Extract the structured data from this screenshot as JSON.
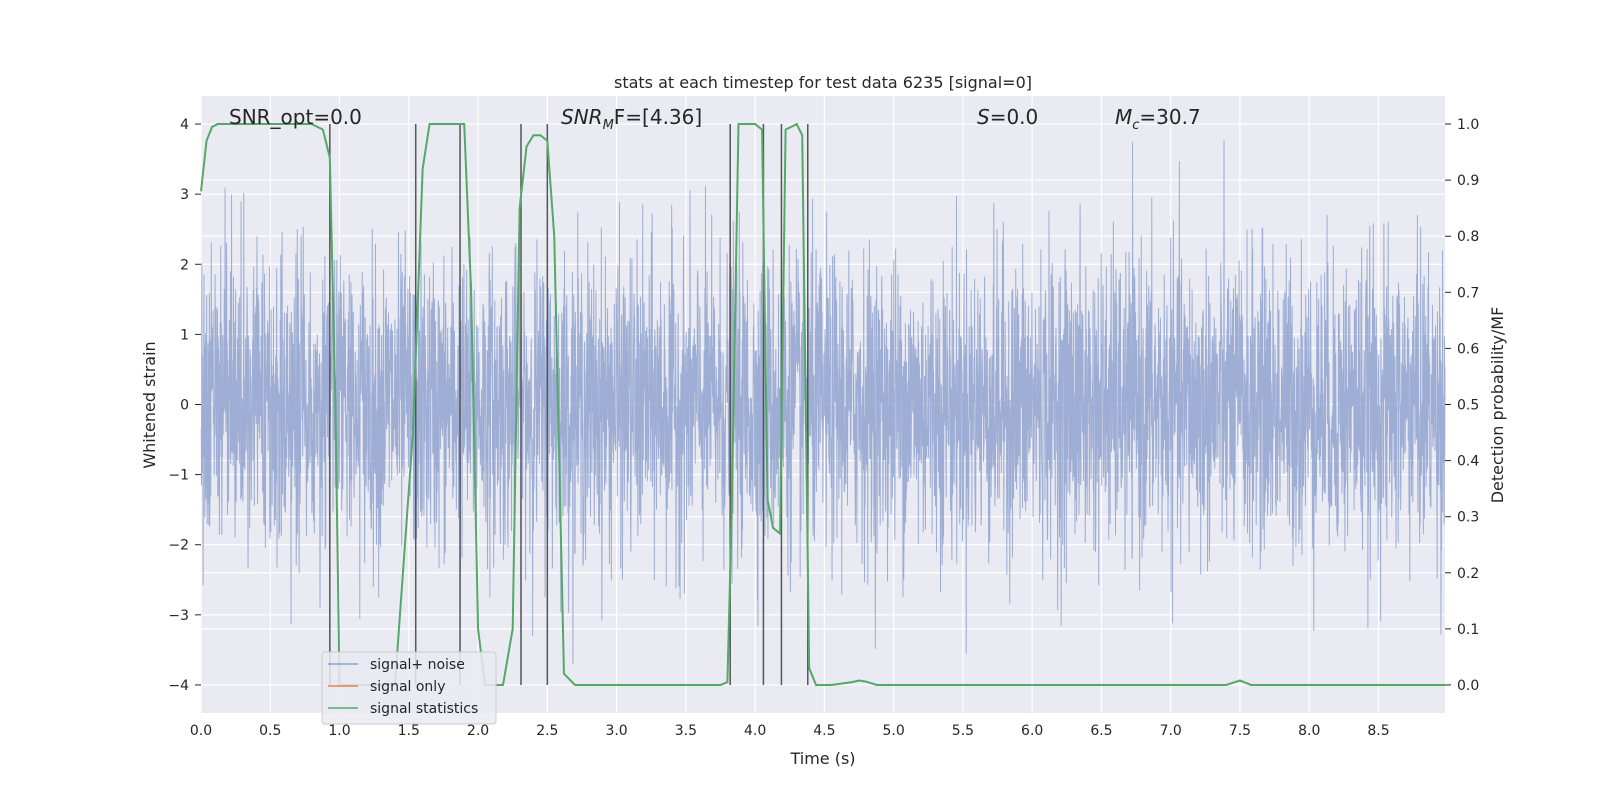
{
  "chart_data": {
    "type": "line",
    "title": "stats at each timestep for test data 6235 [signal=0]",
    "xlabel": "Time (s)",
    "ylabel": "Whitened strain",
    "ylabel_right": "Detection probability/MF",
    "xlim": [
      0,
      8.98
    ],
    "ylim": [
      -4.4,
      4.4
    ],
    "ylim_right": [
      -0.05,
      1.05
    ],
    "x_ticks": [
      "0.0",
      "0.5",
      "1.0",
      "1.5",
      "2.0",
      "2.5",
      "3.0",
      "3.5",
      "4.0",
      "4.5",
      "5.0",
      "5.5",
      "6.0",
      "6.5",
      "7.0",
      "7.5",
      "8.0",
      "8.5"
    ],
    "y_ticks": [
      "4",
      "3",
      "2",
      "1",
      "0",
      "−1",
      "−2",
      "−3",
      "−4"
    ],
    "y_ticks_right": [
      "1.0",
      "0.9",
      "0.8",
      "0.7",
      "0.6",
      "0.5",
      "0.4",
      "0.3",
      "0.2",
      "0.1",
      "0.0"
    ],
    "grid": true,
    "legend_position": "lower-left",
    "annotations": {
      "snr_opt": "SNR_opt=0.0",
      "snr_mf_main": "SNR",
      "snr_mf_sub": "M",
      "snr_mf_rest": "F=[4.36]",
      "s_var": "S",
      "s_val": "=0.0",
      "mc_var": "M",
      "mc_sub": "c",
      "mc_val": "=30.7"
    },
    "series": [
      {
        "name": "signal+ noise",
        "color": "#8fa2cf",
        "description_values": "white noise, approx. amplitude range -3.7 to 4.0"
      },
      {
        "name": "signal only",
        "color": "#dd8452",
        "values": []
      },
      {
        "name": "signal statistics",
        "color": "#55a868",
        "axis": "right",
        "x": [
          0.0,
          0.04,
          0.08,
          0.12,
          0.2,
          0.4,
          0.6,
          0.8,
          0.88,
          0.93,
          0.97,
          1.0,
          1.03,
          1.4,
          1.53,
          1.6,
          1.65,
          1.7,
          1.8,
          1.9,
          1.95,
          2.0,
          2.05,
          2.1,
          2.18,
          2.25,
          2.3,
          2.35,
          2.4,
          2.45,
          2.5,
          2.55,
          2.62,
          2.7,
          3.0,
          3.5,
          3.75,
          3.8,
          3.83,
          3.88,
          3.95,
          4.0,
          4.05,
          4.09,
          4.13,
          4.18,
          4.22,
          4.3,
          4.34,
          4.39,
          4.44,
          4.5,
          4.55,
          4.7,
          4.75,
          4.8,
          4.88,
          5.0,
          6.0,
          7.0,
          7.4,
          7.5,
          7.58,
          7.65,
          8.0,
          8.98
        ],
        "values": [
          0.88,
          0.97,
          0.995,
          1.0,
          1.0,
          1.0,
          1.0,
          1.0,
          0.99,
          0.94,
          0.5,
          0.0,
          0.0,
          0.0,
          0.45,
          0.92,
          1.0,
          1.0,
          1.0,
          1.0,
          0.7,
          0.1,
          0.0,
          0.0,
          0.0,
          0.1,
          0.85,
          0.96,
          0.98,
          0.98,
          0.97,
          0.8,
          0.02,
          0.0,
          0.0,
          0.0,
          0.0,
          0.005,
          0.3,
          1.0,
          1.0,
          1.0,
          0.99,
          0.33,
          0.28,
          0.27,
          0.99,
          1.0,
          0.98,
          0.03,
          0.0,
          0.0,
          0.0,
          0.005,
          0.008,
          0.006,
          0.0,
          0.0,
          0.0,
          0.0,
          0.0,
          0.008,
          0.0,
          0.0,
          0.0,
          0.0
        ]
      }
    ],
    "vertical_lines_x": [
      0.93,
      1.55,
      1.87,
      2.31,
      2.5,
      3.82,
      4.06,
      4.19,
      4.38
    ],
    "colors": {
      "plot_bg": "#eaeaf2",
      "grid": "#ffffff",
      "vlines": "#555555"
    }
  }
}
